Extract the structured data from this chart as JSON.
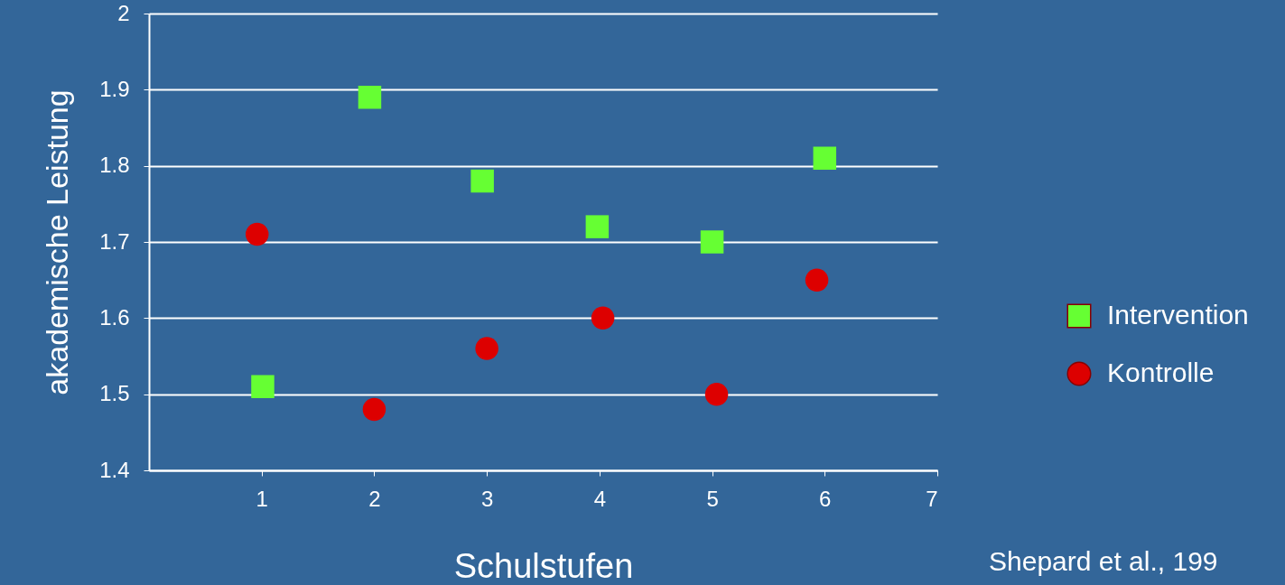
{
  "chart_data": {
    "type": "scatter",
    "xlabel": "Schulstufen",
    "ylabel": "akademische Leistung",
    "xlim": [
      0,
      7
    ],
    "xticks": [
      1,
      2,
      3,
      4,
      5,
      6,
      7
    ],
    "ylim": [
      1.4,
      2
    ],
    "yticks": [
      1.4,
      1.5,
      1.6,
      1.7,
      1.8,
      1.9,
      {
        "value": 2,
        "label": "2"
      }
    ],
    "grid": "y",
    "legend": "right",
    "series": [
      {
        "name": "Intervention",
        "color": "#66ff33",
        "marker": "square",
        "x": [
          1.01,
          1.96,
          2.96,
          3.98,
          5.0,
          6.0
        ],
        "values": [
          1.51,
          1.89,
          1.78,
          1.72,
          1.7,
          1.81
        ]
      },
      {
        "name": "Kontrolle",
        "color": "#dd0000",
        "marker": "circle",
        "x": [
          0.96,
          2.0,
          3.0,
          4.03,
          5.04,
          5.93
        ],
        "values": [
          1.71,
          1.48,
          1.56,
          1.6,
          1.5,
          1.65
        ]
      }
    ],
    "annotations": [
      "Shepard et al., 199"
    ]
  }
}
